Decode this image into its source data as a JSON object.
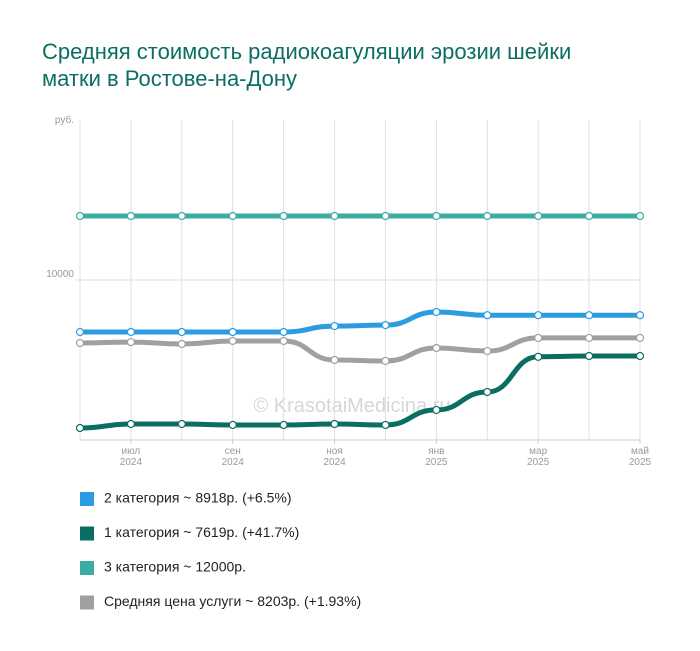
{
  "chart_data": {
    "type": "line",
    "title": "Средняя стоимость радиокоагуляции эрозии шейки матки в Ростове-на-Дону",
    "y_label": "руб.",
    "watermark": "© KrasotaiMedicina.ru",
    "categories": [
      null,
      "июл 2024",
      null,
      "сен 2024",
      null,
      "ноя 2024",
      null,
      "янв 2025",
      null,
      "мар 2025",
      null,
      "май 2025"
    ],
    "ylim": [
      5000,
      15000
    ],
    "yticks": [
      10000
    ],
    "series": [
      {
        "name": "2 категория ~ 8918р. (+6.5%)",
        "color": "#2d9be0",
        "values": [
          8375,
          8375,
          8375,
          8375,
          8375,
          8560,
          8590,
          9000,
          8900,
          8900,
          8900,
          8900
        ]
      },
      {
        "name": "1 категория ~ 7619р. (+41.7%)",
        "color": "#0b6e62",
        "values": [
          5375,
          5500,
          5500,
          5470,
          5470,
          5500,
          5470,
          5940,
          6500,
          7600,
          7625,
          7625
        ]
      },
      {
        "name": "3 категория ~ 12000р.",
        "color": "#3aada0",
        "values": [
          12000,
          12000,
          12000,
          12000,
          12000,
          12000,
          12000,
          12000,
          12000,
          12000,
          12000,
          12000
        ]
      },
      {
        "name": "Средняя цена услуги ~ 8203р. (+1.93%)",
        "color": "#a0a0a0",
        "values": [
          8030,
          8060,
          8000,
          8095,
          8095,
          7500,
          7470,
          7875,
          7780,
          8190,
          8190,
          8190
        ]
      }
    ]
  }
}
